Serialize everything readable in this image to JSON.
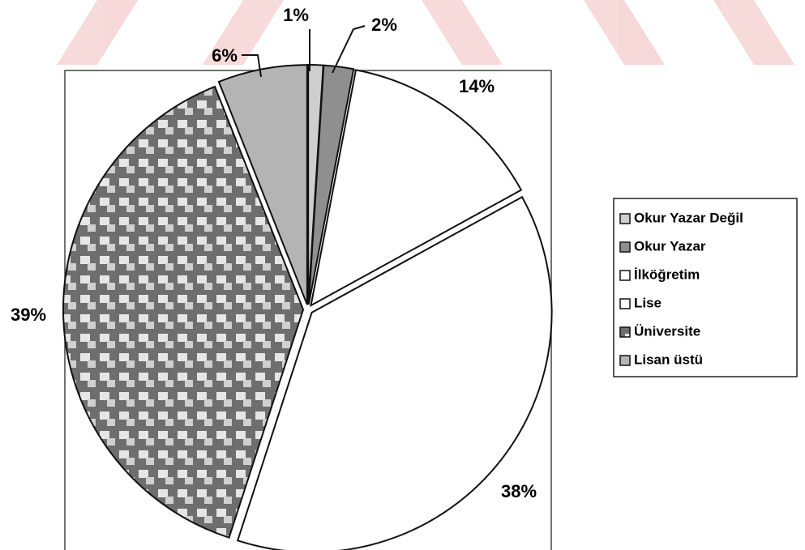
{
  "chart_data": {
    "type": "pie",
    "categories": [
      "Okur Yazar Değil",
      "Okur Yazar",
      "İlköğretim",
      "Lise",
      "Üniversite",
      "Lisan üstü"
    ],
    "values": [
      1,
      2,
      14,
      38,
      39,
      6
    ],
    "value_labels": [
      "1%",
      "2%",
      "14%",
      "38%",
      "39%",
      "6%"
    ],
    "colors": [
      "#cfcfcf",
      "#8f8f8f",
      "#ffffff",
      "#ffffff",
      "#7a7a7a",
      "#b4b4b4"
    ],
    "legend": "right"
  }
}
